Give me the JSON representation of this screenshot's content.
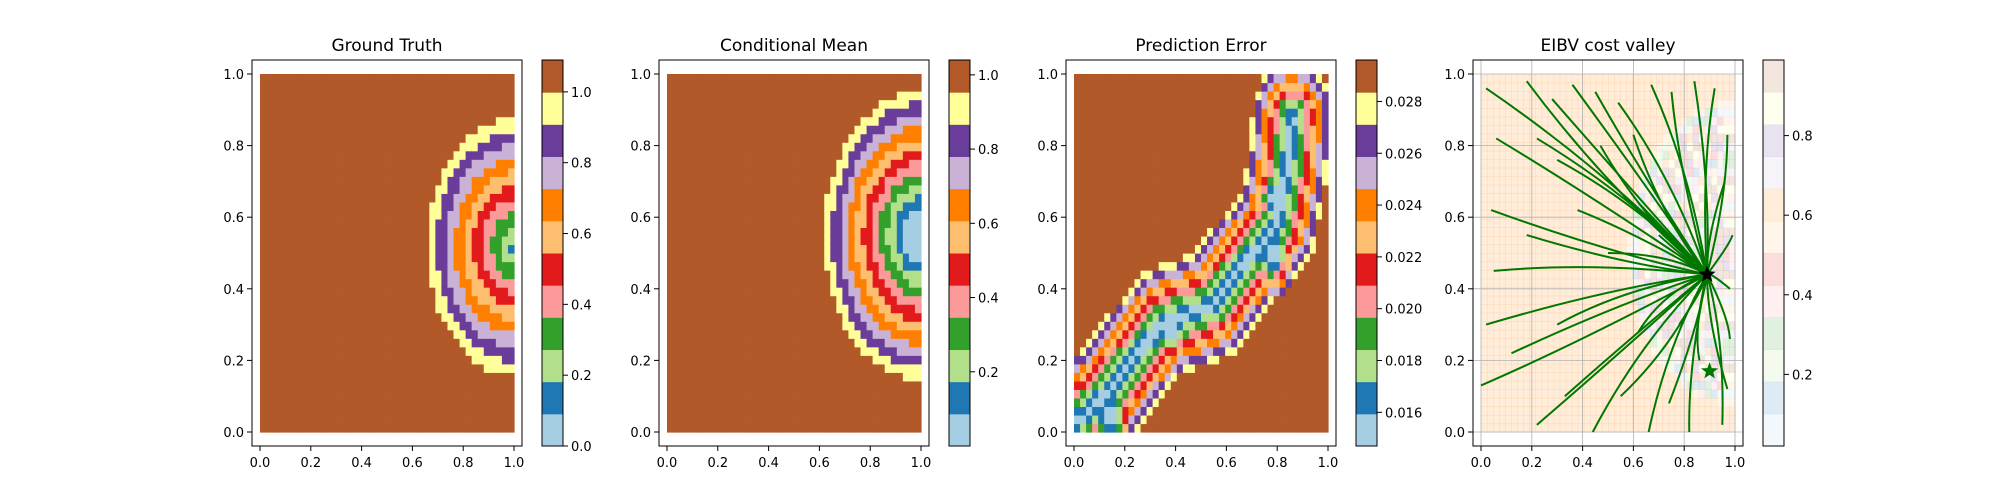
{
  "chart_data": [
    {
      "type": "heatmap",
      "title": "Ground Truth",
      "xlabel": "",
      "ylabel": "",
      "xlim": [
        0,
        1
      ],
      "ylim": [
        0,
        1
      ],
      "x_ticks": [
        "0.0",
        "0.2",
        "0.4",
        "0.6",
        "0.8",
        "1.0"
      ],
      "y_ticks": [
        "0.0",
        "0.2",
        "0.4",
        "0.6",
        "0.8",
        "1.0"
      ],
      "colormap": [
        "#a6cee3",
        "#1f78b4",
        "#b2df8a",
        "#33a02c",
        "#fb9a99",
        "#e31a1c",
        "#fdbf6f",
        "#ff7f00",
        "#cab2d6",
        "#6a3d9a",
        "#ffff99",
        "#b15928"
      ],
      "colorbar": {
        "min": 0.0,
        "max": 1.09,
        "ticks": [
          0.0,
          0.2,
          0.4,
          0.6,
          0.8,
          1.0
        ],
        "tick_labels": [
          "0.0",
          "0.2",
          "0.4",
          "0.6",
          "0.8",
          "1.0"
        ]
      },
      "field": {
        "kind": "rings",
        "center": [
          1.0,
          0.52
        ],
        "radius_at_level_1": 0.36,
        "ring_spacing": 0.04,
        "lower_blob": true,
        "outside_value": 1.0
      }
    },
    {
      "type": "heatmap",
      "title": "Conditional Mean",
      "xlabel": "",
      "ylabel": "",
      "xlim": [
        0,
        1
      ],
      "ylim": [
        0,
        1
      ],
      "x_ticks": [
        "0.0",
        "0.2",
        "0.4",
        "0.6",
        "0.8",
        "1.0"
      ],
      "y_ticks": [
        "0.0",
        "0.2",
        "0.4",
        "0.6",
        "0.8",
        "1.0"
      ],
      "colormap": [
        "#a6cee3",
        "#1f78b4",
        "#b2df8a",
        "#33a02c",
        "#fb9a99",
        "#e31a1c",
        "#fdbf6f",
        "#ff7f00",
        "#cab2d6",
        "#6a3d9a",
        "#ffff99",
        "#b15928"
      ],
      "colorbar": {
        "min": 0.0,
        "max": 1.04,
        "ticks": [
          0.2,
          0.4,
          0.6,
          0.8,
          1.0
        ],
        "tick_labels": [
          "0.2",
          "0.4",
          "0.6",
          "0.8",
          "1.0"
        ]
      },
      "field": {
        "kind": "rings",
        "center": [
          1.0,
          0.55
        ],
        "radius_at_level_1": 0.42,
        "ring_spacing": 0.036,
        "lower_blob": false,
        "outside_value": 1.04
      }
    },
    {
      "type": "heatmap",
      "title": "Prediction Error",
      "xlabel": "",
      "ylabel": "",
      "xlim": [
        0,
        1
      ],
      "ylim": [
        0,
        1
      ],
      "x_ticks": [
        "0.0",
        "0.2",
        "0.4",
        "0.6",
        "0.8",
        "1.0"
      ],
      "y_ticks": [
        "0.0",
        "0.2",
        "0.4",
        "0.6",
        "0.8",
        "1.0"
      ],
      "colormap": [
        "#a6cee3",
        "#1f78b4",
        "#b2df8a",
        "#33a02c",
        "#fb9a99",
        "#e31a1c",
        "#fdbf6f",
        "#ff7f00",
        "#cab2d6",
        "#6a3d9a",
        "#ffff99",
        "#b15928"
      ],
      "colorbar": {
        "min": 0.0147,
        "max": 0.0296,
        "ticks": [
          0.016,
          0.018,
          0.02,
          0.022,
          0.024,
          0.026,
          0.028
        ],
        "tick_labels": [
          "0.016",
          "0.018",
          "0.020",
          "0.022",
          "0.024",
          "0.026",
          "0.028"
        ]
      },
      "field": {
        "kind": "valley",
        "path": [
          [
            0.0,
            0.02
          ],
          [
            0.14,
            0.12
          ],
          [
            0.34,
            0.3
          ],
          [
            0.55,
            0.36
          ],
          [
            0.68,
            0.48
          ],
          [
            0.8,
            0.58
          ],
          [
            0.84,
            0.74
          ],
          [
            0.86,
            0.88
          ]
        ],
        "minima": [
          [
            0.78,
            0.5
          ],
          [
            0.8,
            0.65
          ],
          [
            0.38,
            0.3
          ],
          [
            0.14,
            0.05
          ]
        ],
        "base_value": 0.0295,
        "min_value": 0.015,
        "width": 0.17
      }
    },
    {
      "type": "heatmap",
      "title": "EIBV cost valley",
      "xlabel": "",
      "ylabel": "",
      "xlim": [
        0,
        1
      ],
      "ylim": [
        0,
        1
      ],
      "x_ticks": [
        "0.0",
        "0.2",
        "0.4",
        "0.6",
        "0.8",
        "1.0"
      ],
      "y_ticks": [
        "0.0",
        "0.2",
        "0.4",
        "0.6",
        "0.8",
        "1.0"
      ],
      "colormap": [
        "#a6cee3",
        "#1f78b4",
        "#b2df8a",
        "#33a02c",
        "#fb9a99",
        "#e31a1c",
        "#fdbf6f",
        "#ff7f00",
        "#cab2d6",
        "#6a3d9a",
        "#ffff99",
        "#b15928"
      ],
      "colormap_alpha": 0.15,
      "colorbar": {
        "min": 0.02,
        "max": 0.99,
        "ticks": [
          0.2,
          0.4,
          0.6,
          0.8
        ],
        "tick_labels": [
          "0.2",
          "0.4",
          "0.6",
          "0.8"
        ]
      },
      "grid": true,
      "tree_color": "#007800",
      "current_location": [
        0.89,
        0.44
      ],
      "target_location": [
        0.9,
        0.17
      ],
      "tree_endpoints": [
        [
          0.0,
          0.13
        ],
        [
          0.02,
          0.3
        ],
        [
          0.05,
          0.45
        ],
        [
          0.04,
          0.62
        ],
        [
          0.06,
          0.82
        ],
        [
          0.02,
          0.96
        ],
        [
          0.18,
          0.98
        ],
        [
          0.22,
          0.82
        ],
        [
          0.28,
          0.93
        ],
        [
          0.36,
          0.97
        ],
        [
          0.45,
          0.95
        ],
        [
          0.54,
          0.92
        ],
        [
          0.6,
          0.83
        ],
        [
          0.67,
          0.97
        ],
        [
          0.75,
          0.95
        ],
        [
          0.84,
          0.98
        ],
        [
          0.92,
          0.96
        ],
        [
          0.97,
          0.83
        ],
        [
          0.96,
          0.7
        ],
        [
          0.99,
          0.55
        ],
        [
          0.98,
          0.4
        ],
        [
          0.98,
          0.26
        ],
        [
          0.97,
          0.12
        ],
        [
          0.95,
          0.02
        ],
        [
          0.82,
          0.0
        ],
        [
          0.74,
          0.08
        ],
        [
          0.66,
          0.0
        ],
        [
          0.55,
          0.1
        ],
        [
          0.44,
          0.0
        ],
        [
          0.33,
          0.1
        ],
        [
          0.22,
          0.02
        ],
        [
          0.12,
          0.22
        ],
        [
          0.3,
          0.3
        ],
        [
          0.18,
          0.55
        ],
        [
          0.38,
          0.62
        ],
        [
          0.3,
          0.76
        ],
        [
          0.47,
          0.8
        ],
        [
          0.5,
          0.5
        ],
        [
          0.62,
          0.64
        ],
        [
          0.7,
          0.55
        ],
        [
          0.62,
          0.28
        ],
        [
          0.78,
          0.3
        ],
        [
          0.86,
          0.2
        ]
      ]
    }
  ]
}
